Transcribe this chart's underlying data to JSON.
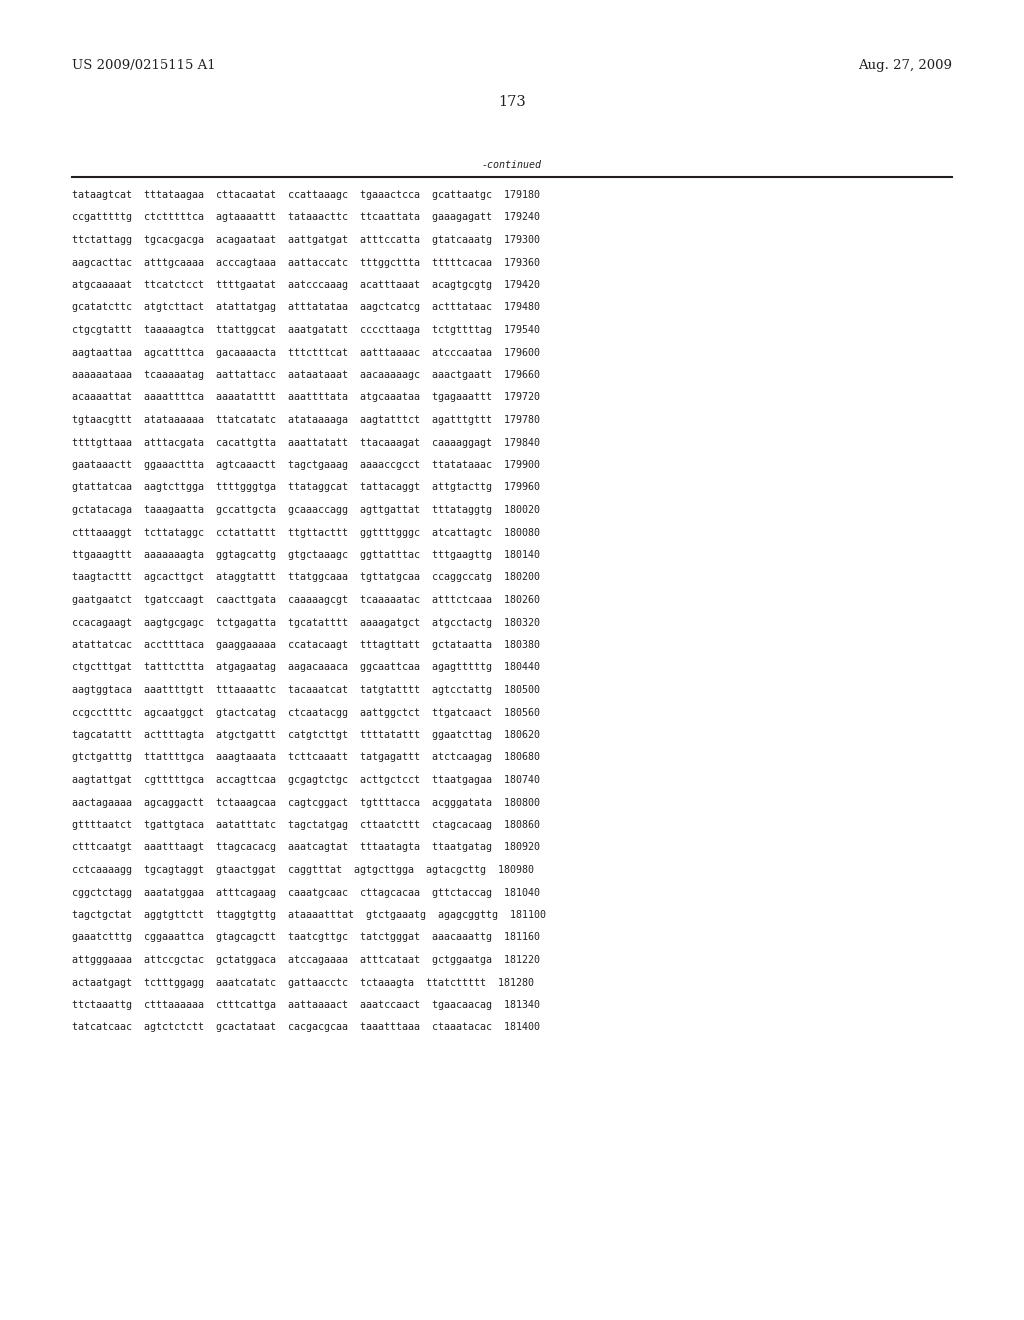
{
  "patent_number": "US 2009/0215115 A1",
  "date": "Aug. 27, 2009",
  "page_number": "173",
  "continued_label": "-continued",
  "background_color": "#ffffff",
  "text_color": "#231f20",
  "font_size_header": 9.5,
  "font_size_body": 7.2,
  "font_size_page": 10.5,
  "sequence_lines": [
    "tataagtcat  tttataagaa  cttacaatat  ccattaaagc  tgaaactcca  gcattaatgc  179180",
    "ccgatttttg  ctctttttca  agtaaaattt  tataaacttc  ttcaattata  gaaagagatt  179240",
    "ttctattagg  tgcacgacga  acagaataat  aattgatgat  atttccatta  gtatcaaatg  179300",
    "aagcacttac  atttgcaaaa  acccagtaaa  aattaccatc  tttggcttta  tttttcacaa  179360",
    "atgcaaaaat  ttcatctcct  ttttgaatat  aatcccaaag  acatttaaat  acagtgcgtg  179420",
    "gcatatcttc  atgtcttact  atattatgag  atttatataa  aagctcatcg  actttataac  179480",
    "ctgcgtattt  taaaaagtca  ttattggcat  aaatgatatt  ccccttaaga  tctgttttag  179540",
    "aagtaattaa  agcattttca  gacaaaacta  tttctttcat  aatttaaaac  atcccaataa  179600",
    "aaaaaataaa  tcaaaaatag  aattattacc  aataataaat  aacaaaaagc  aaactgaatt  179660",
    "acaaaattat  aaaattttca  aaaatatttt  aaattttata  atgcaaataa  tgagaaattt  179720",
    "tgtaacgttt  atataaaaaa  ttatcatatc  atataaaaga  aagtatttct  agatttgttt  179780",
    "ttttgttaaa  atttacgata  cacattgtta  aaattatatt  ttacaaagat  caaaaggagt  179840",
    "gaataaactt  ggaaacttta  agtcaaactt  tagctgaaag  aaaaccgcct  ttatataaac  179900",
    "gtattatcaa  aagtcttgga  ttttgggtga  ttataggcat  tattacaggt  attgtacttg  179960",
    "gctatacaga  taaagaatta  gccattgcta  gcaaaccagg  agttgattat  tttataggtg  180020",
    "ctttaaaggt  tcttataggc  cctattattt  ttgttacttt  ggttttgggc  atcattagtc  180080",
    "ttgaaagttt  aaaaaaagta  ggtagcattg  gtgctaaagc  ggttatttac  tttgaagttg  180140",
    "taagtacttt  agcacttgct  ataggtattt  ttatggcaaa  tgttatgcaa  ccaggccatg  180200",
    "gaatgaatct  tgatccaagt  caacttgata  caaaaagcgt  tcaaaaatac  atttctcaaa  180260",
    "ccacagaagt  aagtgcgagc  tctgagatta  tgcatatttt  aaaagatgct  atgcctactg  180320",
    "atattatcac  accttttaca  gaaggaaaaa  ccatacaagt  tttagttatt  gctataatta  180380",
    "ctgctttgat  tatttcttta  atgagaatag  aagacaaaca  ggcaattcaa  agagtttttg  180440",
    "aagtggtaca  aaattttgtt  tttaaaattc  tacaaatcat  tatgtatttt  agtcctattg  180500",
    "ccgccttttc  agcaatggct  gtactcatag  ctcaatacgg  aattggctct  ttgatcaact  180560",
    "tagcatattt  acttttagta  atgctgattt  catgtcttgt  ttttatattt  ggaatcttag  180620",
    "gtctgatttg  ttattttgca  aaagtaaata  tcttcaaatt  tatgagattt  atctcaagag  180680",
    "aagtattgat  cgtttttgca  accagttcaa  gcgagtctgc  acttgctcct  ttaatgagaa  180740",
    "aactagaaaa  agcaggactt  tctaaagcaa  cagtcggact  tgttttacca  acgggatata  180800",
    "gttttaatct  tgattgtaca  aatatttatc  tagctatgag  cttaatcttt  ctagcacaag  180860",
    "ctttcaatgt  aaatttaagt  ttagcacacg  aaatcagtat  tttaatagta  ttaatgatag  180920",
    "cctcaaaagg  tgcagtaggt  gtaactggat  caggtttat  agtgcttgga  agtacgcttg  180980",
    "cggctctagg  aaatatggaa  atttcagaag  caaatgcaac  cttagcacaa  gttctaccag  181040",
    "tagctgctat  aggtgttctt  ttaggtgttg  ataaaatttat  gtctgaaatg  agagcggttg  181100",
    "gaaatctttg  cggaaattca  gtagcagctt  taatcgttgc  tatctgggat  aaacaaattg  181160",
    "attgggaaaa  attccgctac  gctatggaca  atccagaaaa  atttcataat  gctggaatga  181220",
    "actaatgagt  tctttggagg  aaatcatatc  gattaacctc  tctaaagta  ttatcttttt  181280",
    "ttctaaattg  ctttaaaaaa  ctttcattga  aattaaaact  aaatccaact  tgaacaacag  181340",
    "tatcatcaac  agtctctctt  gcactataat  cacgacgcaa  taaatttaaa  ctaaatacac  181400"
  ]
}
